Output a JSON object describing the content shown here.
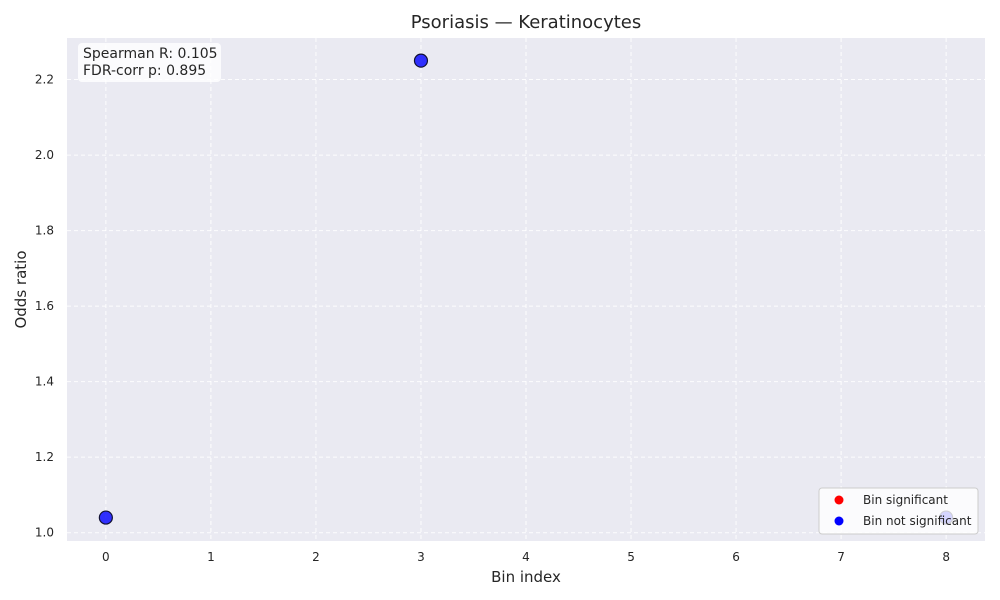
{
  "chart_data": {
    "type": "scatter",
    "title": "Psoriasis — Keratinocytes",
    "xlabel": "Bin index",
    "ylabel": "Odds ratio",
    "xlim": [
      -0.37,
      8.37
    ],
    "ylim": [
      0.978,
      2.31
    ],
    "x_ticks": [
      0,
      1,
      2,
      3,
      4,
      5,
      6,
      7,
      8
    ],
    "y_ticks": [
      1.0,
      1.2,
      1.4,
      1.6,
      1.8,
      2.0,
      2.2
    ],
    "grid": true,
    "series": [
      {
        "name": "Bin not significant",
        "color": "#0000ff",
        "points": [
          {
            "x": 0,
            "y": 1.04
          },
          {
            "x": 3,
            "y": 2.25
          },
          {
            "x": 8,
            "y": 1.04
          }
        ]
      }
    ],
    "legend": {
      "position": "bottom-right",
      "entries": [
        {
          "label": "Bin significant",
          "color": "#ff0000"
        },
        {
          "label": "Bin not significant",
          "color": "#0000ff"
        }
      ]
    },
    "annotation": {
      "position": "top-left",
      "lines": [
        "Spearman R: 0.105",
        "FDR-corr p: 0.895"
      ]
    }
  }
}
